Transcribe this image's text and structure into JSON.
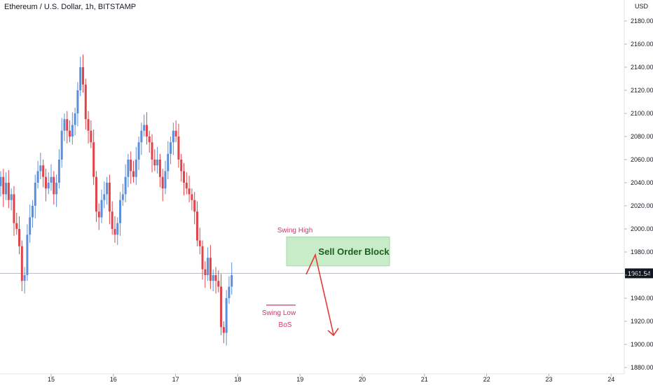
{
  "header": {
    "title": "Ethereum / U.S. Dollar, 1h, BITSTAMP",
    "currency": "USD"
  },
  "chart_data": {
    "type": "candlestick",
    "title": "Ethereum / U.S. Dollar, 1h, BITSTAMP",
    "ylabel": "USD",
    "y_ticks": [
      "2180.00",
      "2160.00",
      "2140.00",
      "2120.00",
      "2100.00",
      "2080.00",
      "2060.00",
      "2040.00",
      "2020.00",
      "2000.00",
      "1980.00",
      "1960.00",
      "1940.00",
      "1920.00",
      "1900.00",
      "1880.00"
    ],
    "ylim": [
      1875,
      2190
    ],
    "x_ticks": [
      "15",
      "16",
      "17",
      "18",
      "19",
      "20",
      "21",
      "22",
      "23",
      "24"
    ],
    "last_price": "1961.54",
    "colors": {
      "up": "#5b8fdc",
      "down": "#e0444b",
      "annotation_red": "#d6336c",
      "block_fill": "#c8ecc8",
      "block_text": "#1b5e20",
      "arrow": "#e53935"
    },
    "closes": [
      2045,
      2030,
      2040,
      2025,
      2030,
      2005,
      2000,
      1985,
      1955,
      1960,
      1995,
      2010,
      2020,
      2040,
      2050,
      2055,
      2045,
      2035,
      2040,
      2045,
      2030,
      2040,
      2060,
      2085,
      2095,
      2085,
      2080,
      2090,
      2100,
      2120,
      2140,
      2125,
      2095,
      2085,
      2075,
      2045,
      2015,
      2010,
      2025,
      2030,
      2040,
      2015,
      2000,
      1995,
      2005,
      2025,
      2030,
      2045,
      2060,
      2050,
      2045,
      2060,
      2075,
      2085,
      2090,
      2080,
      2075,
      2060,
      2055,
      2060,
      2045,
      2035,
      2050,
      2065,
      2075,
      2085,
      2080,
      2060,
      2050,
      2040,
      2035,
      2030,
      2025,
      2015,
      1990,
      1985,
      1965,
      1960,
      1975,
      1955,
      1960,
      1955,
      1950,
      1915,
      1910,
      1940,
      1950,
      1960
    ],
    "candle_start_x": 1,
    "candle_spacing": 3.79,
    "annotations": {
      "swing_high": "Swing High",
      "swing_low": "Swing Low",
      "bos": "BoS",
      "sell_order_block": "Sell Order Block"
    },
    "sell_order_block_range": [
      1968,
      1993
    ],
    "swing_low_level": 1934
  }
}
